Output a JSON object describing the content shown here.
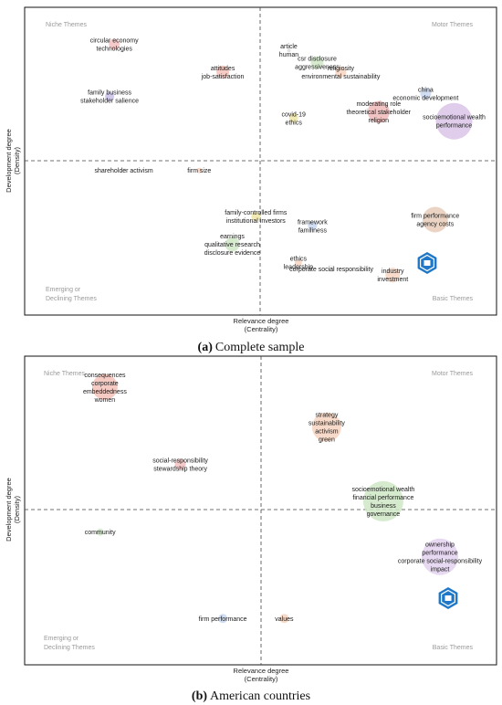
{
  "panels": [
    {
      "caption_letter": "(a)",
      "caption_text": "Complete sample",
      "xlabel": "Relevance degree",
      "xlabel_sub": "(Centrality)",
      "ylabel": "Development degree",
      "ylabel_sub": "(Density)",
      "quadrants": {
        "top_left": "Niche Themes",
        "top_right": "Motor Themes",
        "bottom_left_1": "Emerging or",
        "bottom_left_2": "Declining Themes",
        "bottom_right": "Basic Themes"
      },
      "chart_data": {
        "type": "scatter",
        "x_axis": "centrality",
        "y_axis": "density",
        "clusters": [
          {
            "labels": [
              "circular economy",
              "technologies"
            ],
            "x": 0.19,
            "y": 0.88,
            "size": 6,
            "color": "#f3c1c1"
          },
          {
            "labels": [
              "family business",
              "stakeholder salience"
            ],
            "x": 0.18,
            "y": 0.71,
            "size": 5,
            "color": "#c9c1e8"
          },
          {
            "labels": [
              "attitudes",
              "job-satisfaction"
            ],
            "x": 0.42,
            "y": 0.79,
            "size": 7,
            "color": "#f4c2b8"
          },
          {
            "labels": [
              "article",
              "human"
            ],
            "x": 0.56,
            "y": 0.86,
            "size": 2,
            "color": "#dddddd"
          },
          {
            "labels": [
              "csr disclosure",
              "aggressiveness"
            ],
            "x": 0.62,
            "y": 0.82,
            "size": 7,
            "color": "#cfe8c5"
          },
          {
            "labels": [
              "religiosity",
              "environmental sustainability"
            ],
            "x": 0.67,
            "y": 0.79,
            "size": 6,
            "color": "#f6d4bf"
          },
          {
            "labels": [
              "china",
              "economic development"
            ],
            "x": 0.85,
            "y": 0.72,
            "size": 6,
            "color": "#c8d7f0"
          },
          {
            "labels": [
              "moderating role",
              "theoretical stakeholder",
              "religion"
            ],
            "x": 0.75,
            "y": 0.66,
            "size": 12,
            "color": "#f0b9b9"
          },
          {
            "labels": [
              "socioemotional wealth",
              "performance"
            ],
            "x": 0.91,
            "y": 0.63,
            "size": 20,
            "color": "#d9c4e8"
          },
          {
            "labels": [
              "covid-19",
              "ethics"
            ],
            "x": 0.57,
            "y": 0.64,
            "size": 5,
            "color": "#f0e6a8"
          },
          {
            "labels": [
              "shareholder activism"
            ],
            "x": 0.21,
            "y": 0.47,
            "size": 3,
            "color": "#eeeeee"
          },
          {
            "labels": [
              "firm size"
            ],
            "x": 0.37,
            "y": 0.47,
            "size": 3,
            "color": "#f6d4bf"
          },
          {
            "labels": [
              "family-controlled firms",
              "institutional investors"
            ],
            "x": 0.49,
            "y": 0.32,
            "size": 5,
            "color": "#f0e6a8"
          },
          {
            "labels": [
              "framework",
              "familiness"
            ],
            "x": 0.61,
            "y": 0.29,
            "size": 5,
            "color": "#c8d7f0"
          },
          {
            "labels": [
              "firm performance",
              "agency costs"
            ],
            "x": 0.87,
            "y": 0.31,
            "size": 14,
            "color": "#e8cdb8"
          },
          {
            "labels": [
              "earnings",
              "qualitative research",
              "disclosure evidence"
            ],
            "x": 0.44,
            "y": 0.23,
            "size": 8,
            "color": "#cfe8c5"
          },
          {
            "labels": [
              "ethics",
              "leadership"
            ],
            "x": 0.58,
            "y": 0.17,
            "size": 4,
            "color": "#f6d4bf"
          },
          {
            "labels": [
              "corporate social responsibility"
            ],
            "x": 0.65,
            "y": 0.15,
            "size": 4,
            "color": "#eeeeee"
          },
          {
            "labels": [
              "industry",
              "investment"
            ],
            "x": 0.78,
            "y": 0.13,
            "size": 8,
            "color": "#f6d4bf"
          }
        ]
      }
    },
    {
      "caption_letter": "(b)",
      "caption_text": "American countries",
      "xlabel": "Relevance degree",
      "xlabel_sub": "(Centrality)",
      "ylabel": "Development degree",
      "ylabel_sub": "(Density)",
      "quadrants": {
        "top_left": "Niche Themes",
        "top_right": "Motor Themes",
        "bottom_left_1": "Emerging or",
        "bottom_left_2": "Declining Themes",
        "bottom_right": "Basic Themes"
      },
      "chart_data": {
        "type": "scatter",
        "x_axis": "centrality",
        "y_axis": "density",
        "clusters": [
          {
            "labels": [
              "consequences",
              "corporate",
              "embeddedness",
              "women"
            ],
            "x": 0.17,
            "y": 0.9,
            "size": 14,
            "color": "#f4c2b8"
          },
          {
            "labels": [
              "social-responsibility",
              "stewardship theory"
            ],
            "x": 0.33,
            "y": 0.65,
            "size": 6,
            "color": "#f3c1c1"
          },
          {
            "labels": [
              "strategy",
              "sustainability",
              "activism",
              "green"
            ],
            "x": 0.64,
            "y": 0.77,
            "size": 16,
            "color": "#f6d4bf"
          },
          {
            "labels": [
              "socioemotional wealth",
              "financial performance",
              "business",
              "governance"
            ],
            "x": 0.76,
            "y": 0.53,
            "size": 22,
            "color": "#cfe8c5"
          },
          {
            "labels": [
              "community"
            ],
            "x": 0.16,
            "y": 0.43,
            "size": 4,
            "color": "#cfe8c5"
          },
          {
            "labels": [
              "ownership",
              "performance",
              "corporate social-responsibility",
              "impact"
            ],
            "x": 0.88,
            "y": 0.35,
            "size": 20,
            "color": "#e3d2ef"
          },
          {
            "labels": [
              "firm performance"
            ],
            "x": 0.42,
            "y": 0.15,
            "size": 5,
            "color": "#c8d7f0"
          },
          {
            "labels": [
              "values"
            ],
            "x": 0.55,
            "y": 0.15,
            "size": 5,
            "color": "#f6d4bf"
          }
        ]
      }
    }
  ],
  "icons": {
    "badge_icon": "hexagon-logo-icon",
    "badge_color": "#1f78c8"
  }
}
